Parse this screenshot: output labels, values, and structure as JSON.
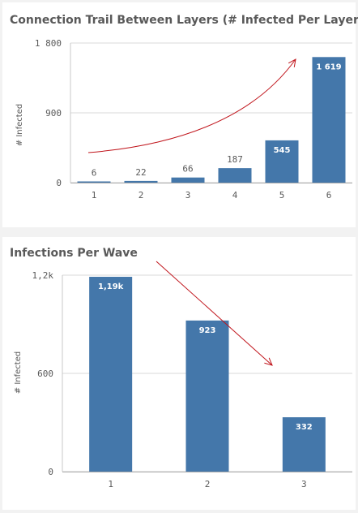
{
  "colors": {
    "bar": "#4477aa",
    "arrow": "#c0141b",
    "grid": "#d9d9d9",
    "text": "#595959"
  },
  "chart_data": [
    {
      "type": "bar",
      "title": "Connection Trail Between Layers (# Infected Per Layer)",
      "xlabel": "",
      "ylabel": "# Infected",
      "categories": [
        "1",
        "2",
        "3",
        "4",
        "5",
        "6"
      ],
      "values": [
        6,
        22,
        66,
        187,
        545,
        1619
      ],
      "value_labels": [
        "6",
        "22",
        "66",
        "187",
        "545",
        "1 619"
      ],
      "y_ticks": [
        0,
        900,
        1800
      ],
      "y_tick_labels": [
        "0",
        "900",
        "1 800"
      ],
      "ylim": [
        0,
        1800
      ],
      "grid": true,
      "annotation": "curved-upward-arrow"
    },
    {
      "type": "bar",
      "title": "Infections Per Wave",
      "xlabel": "",
      "ylabel": "# Infected",
      "categories": [
        "1",
        "2",
        "3"
      ],
      "values": [
        1190,
        923,
        332
      ],
      "value_labels": [
        "1,19k",
        "923",
        "332"
      ],
      "y_ticks": [
        0,
        600,
        1200
      ],
      "y_tick_labels": [
        "0",
        "600",
        "1,2k"
      ],
      "ylim": [
        0,
        1200
      ],
      "grid": true,
      "annotation": "downward-arrow"
    }
  ]
}
